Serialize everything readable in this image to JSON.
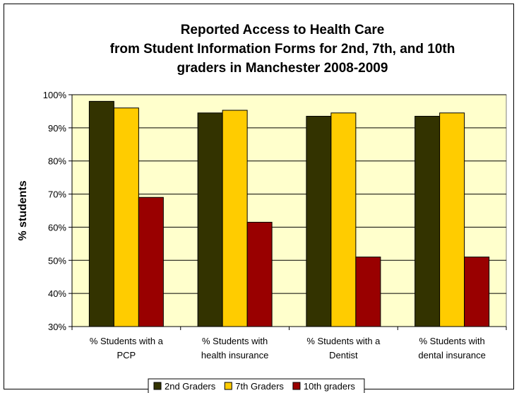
{
  "chart_data": {
    "type": "bar",
    "title": [
      "Reported Access to Health Care",
      "from Student Information Forms for 2nd, 7th, and 10th",
      "graders in Manchester 2008-2009"
    ],
    "ylabel": "% students",
    "xlabel": "",
    "ylim": [
      30,
      100
    ],
    "yticks": [
      30,
      40,
      50,
      60,
      70,
      80,
      90,
      100
    ],
    "ytick_labels": [
      "30%",
      "40%",
      "50%",
      "60%",
      "70%",
      "80%",
      "90%",
      "100%"
    ],
    "categories": [
      [
        "% Students with a",
        "PCP"
      ],
      [
        "% Students with",
        "health insurance"
      ],
      [
        "% Students with a",
        "Dentist"
      ],
      [
        "% Students with",
        "dental insurance"
      ]
    ],
    "series": [
      {
        "name": "2nd Graders",
        "color": "#333300",
        "values": [
          98,
          94.5,
          93.5,
          93.5
        ]
      },
      {
        "name": "7th Graders",
        "color": "#FFCC00",
        "values": [
          96,
          95.3,
          94.5,
          94.5
        ]
      },
      {
        "name": "10th graders",
        "color": "#990000",
        "values": [
          69,
          61.5,
          51,
          51
        ]
      }
    ],
    "plot_background": "#FFFFCC",
    "grid": true,
    "legend_position": "bottom"
  }
}
